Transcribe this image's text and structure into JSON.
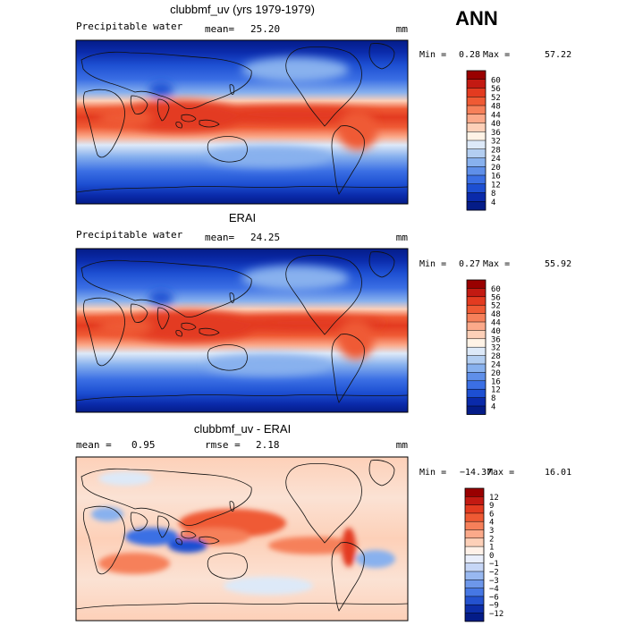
{
  "season": "ANN",
  "chart_data": [
    {
      "type": "heatmap",
      "title": "clubbmf_uv (yrs 1979-1979)",
      "variable": "Precipitable water",
      "stat1_label": "mean=",
      "stat1_value": "25.20",
      "units": "mm",
      "min_label": "Min =",
      "min_value": "0.28",
      "max_label": "Max =",
      "max_value": "57.22",
      "colorbar_levels": [
        "60",
        "56",
        "52",
        "48",
        "44",
        "40",
        "36",
        "32",
        "28",
        "24",
        "20",
        "16",
        "12",
        "8",
        "4"
      ],
      "colorbar_colors": [
        "#990000",
        "#c31a12",
        "#e33b20",
        "#ef5a34",
        "#f6805a",
        "#fba98a",
        "#fdd0b8",
        "#fff3e6",
        "#dde9f8",
        "#b3cef1",
        "#88b1ee",
        "#5f8fe9",
        "#3b6fe4",
        "#1d4fd2",
        "#0a2aaa",
        "#041c88"
      ],
      "palette": "warm-high"
    },
    {
      "type": "heatmap",
      "title": "ERAI",
      "variable": "Precipitable water",
      "stat1_label": "mean=",
      "stat1_value": "24.25",
      "units": "mm",
      "min_label": "Min =",
      "min_value": "0.27",
      "max_label": "Max =",
      "max_value": "55.92",
      "colorbar_levels": [
        "60",
        "56",
        "52",
        "48",
        "44",
        "40",
        "36",
        "32",
        "28",
        "24",
        "20",
        "16",
        "12",
        "8",
        "4"
      ],
      "colorbar_colors": [
        "#990000",
        "#c31a12",
        "#e33b20",
        "#ef5a34",
        "#f6805a",
        "#fba98a",
        "#fdd0b8",
        "#fff3e6",
        "#dde9f8",
        "#b3cef1",
        "#88b1ee",
        "#5f8fe9",
        "#3b6fe4",
        "#1d4fd2",
        "#0a2aaa",
        "#041c88"
      ],
      "palette": "warm-high"
    },
    {
      "type": "heatmap",
      "title": "clubbmf_uv - ERAI",
      "variable": "",
      "stat0_label": "mean =",
      "stat0_value": "0.95",
      "stat1_label": "rmse =",
      "stat1_value": "2.18",
      "units": "mm",
      "min_label": "Min =",
      "min_value": "−14.37",
      "max_label": "Max =",
      "max_value": "16.01",
      "colorbar_levels": [
        "12",
        "9",
        "6",
        "4",
        "3",
        "2",
        "1",
        "0",
        "−1",
        "−2",
        "−3",
        "−4",
        "−6",
        "−9",
        "−12"
      ],
      "colorbar_colors": [
        "#990000",
        "#c31a12",
        "#e33b20",
        "#ef5a34",
        "#f6805a",
        "#fba98a",
        "#fdd0b8",
        "#fff1e8",
        "#e9eefb",
        "#c6d6f6",
        "#98b8f0",
        "#6d97ea",
        "#4677e4",
        "#2452cf",
        "#0d2ea8",
        "#041c88"
      ],
      "palette": "diverging"
    }
  ]
}
